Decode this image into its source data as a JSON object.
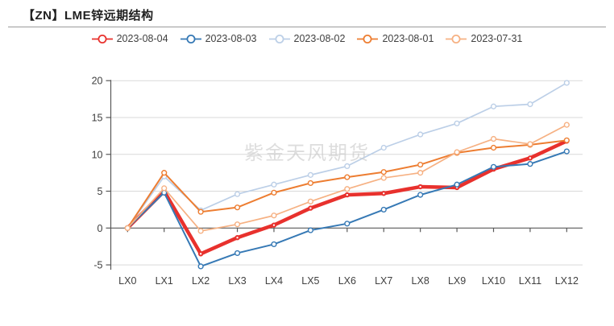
{
  "header": {
    "title": "【ZN】LME锌远期结构"
  },
  "watermark": "紫金天风期货",
  "chart_data": {
    "type": "line",
    "title": "【ZN】LME锌远期结构",
    "xlabel": "",
    "ylabel": "",
    "ylim": [
      -5,
      20
    ],
    "yticks": [
      -5,
      0,
      5,
      10,
      15,
      20
    ],
    "grid": true,
    "legend_position": "top",
    "categories": [
      "LX0",
      "LX1",
      "LX2",
      "LX3",
      "LX4",
      "LX5",
      "LX6",
      "LX7",
      "LX8",
      "LX9",
      "LX10",
      "LX11",
      "LX12"
    ],
    "series": [
      {
        "name": "2023-08-04",
        "color": "#e8312d",
        "line_width": 4.5,
        "values": [
          0,
          5.0,
          -3.5,
          -1.3,
          0.4,
          2.7,
          4.5,
          4.7,
          5.6,
          5.5,
          8.0,
          9.5,
          11.8
        ]
      },
      {
        "name": "2023-08-03",
        "color": "#3679b5",
        "line_width": 2,
        "values": [
          0,
          4.8,
          -5.2,
          -3.4,
          -2.2,
          -0.3,
          0.6,
          2.5,
          4.5,
          5.9,
          8.3,
          8.7,
          10.4
        ]
      },
      {
        "name": "2023-08-02",
        "color": "#bccfe7",
        "line_width": 1.7,
        "values": [
          0,
          7.0,
          2.4,
          4.6,
          5.9,
          7.2,
          8.4,
          10.9,
          12.7,
          14.2,
          16.5,
          16.8,
          19.7
        ]
      },
      {
        "name": "2023-08-01",
        "color": "#ed7d31",
        "line_width": 2,
        "values": [
          0,
          7.5,
          2.2,
          2.8,
          4.8,
          6.1,
          6.9,
          7.6,
          8.6,
          10.2,
          10.9,
          11.3,
          11.9
        ]
      },
      {
        "name": "2023-07-31",
        "color": "#f6b183",
        "line_width": 1.7,
        "values": [
          0,
          5.4,
          -0.4,
          0.5,
          1.7,
          3.6,
          5.3,
          6.8,
          7.5,
          10.3,
          12.1,
          11.4,
          14.0
        ]
      }
    ],
    "axis_color": "#404040",
    "gridline_color": "#d9d9d9"
  }
}
